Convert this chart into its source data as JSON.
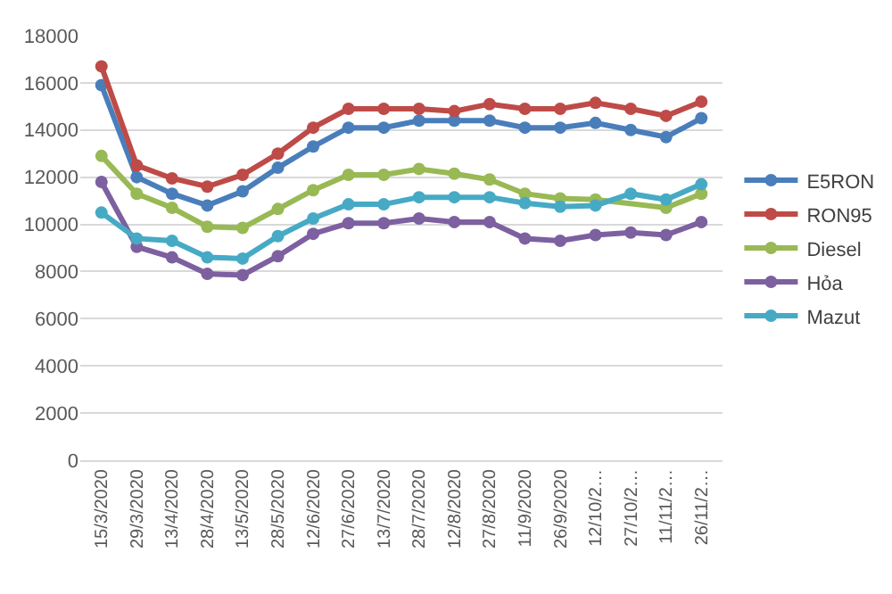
{
  "chart_data": {
    "type": "line",
    "categories": [
      "15/3/2020",
      "29/3/2020",
      "13/4/2020",
      "28/4/2020",
      "13/5/2020",
      "28/5/2020",
      "12/6/2020",
      "27/6/2020",
      "13/7/2020",
      "28/7/2020",
      "12/8/2020",
      "27/8/2020",
      "11/9/2020",
      "26/9/2020",
      "12/10/2…",
      "27/10/2…",
      "11/11/2…",
      "26/11/2…"
    ],
    "series": [
      {
        "name": "E5RON",
        "color": "#4a7ebb",
        "values": [
          15900,
          12000,
          11300,
          10800,
          11400,
          12400,
          13300,
          14100,
          14100,
          14400,
          14400,
          14400,
          14100,
          14100,
          14300,
          14000,
          13700,
          14500
        ]
      },
      {
        "name": "RON95",
        "color": "#be4b48",
        "values": [
          16700,
          12500,
          11950,
          11600,
          12100,
          13000,
          14100,
          14900,
          14900,
          14900,
          14800,
          15100,
          14900,
          14900,
          15150,
          14900,
          14600,
          15200
        ]
      },
      {
        "name": "Diesel",
        "color": "#98b954",
        "values": [
          12900,
          11300,
          10700,
          9900,
          9850,
          10650,
          11450,
          12100,
          12100,
          12350,
          12150,
          11900,
          11300,
          11100,
          11050,
          null,
          10700,
          11300
        ]
      },
      {
        "name": "Hỏa",
        "color": "#7d60a0",
        "values": [
          11800,
          9050,
          8600,
          7900,
          7850,
          8650,
          9600,
          10050,
          10050,
          10250,
          10100,
          10100,
          9400,
          9300,
          9550,
          9650,
          9550,
          10100
        ]
      },
      {
        "name": "Mazut",
        "color": "#46aac5",
        "values": [
          10500,
          9400,
          9300,
          8600,
          8550,
          9500,
          10250,
          10850,
          10850,
          11150,
          11150,
          11150,
          10900,
          10750,
          10800,
          11300,
          11050,
          11700
        ]
      }
    ],
    "ylim": [
      0,
      18000
    ],
    "yticks": [
      0,
      2000,
      4000,
      6000,
      8000,
      10000,
      12000,
      14000,
      16000,
      18000
    ],
    "grid": "y",
    "legend": "right",
    "marker": "circle",
    "line_style": "solid"
  }
}
